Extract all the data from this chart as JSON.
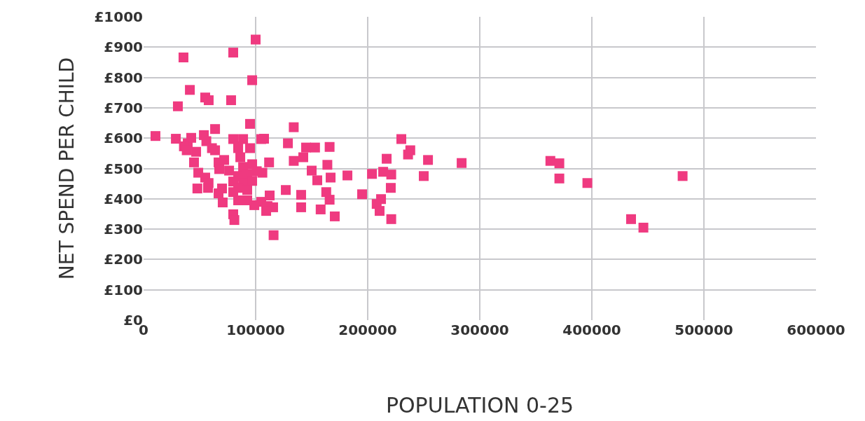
{
  "chart_data": {
    "type": "scatter",
    "xlabel": "POPULATION 0-25",
    "ylabel": "NET SPEND PER CHILD",
    "marker": "square",
    "grid": true,
    "xlim": [
      0,
      600000
    ],
    "xticks": [
      0,
      100000,
      200000,
      300000,
      400000,
      500000,
      600000
    ],
    "ylim": [
      0,
      1000
    ],
    "yticks": [
      {
        "value": 0,
        "label": "£0"
      },
      {
        "value": 100,
        "label": "£100"
      },
      {
        "value": 200,
        "label": "£200"
      },
      {
        "value": 300,
        "label": "£300"
      },
      {
        "value": 400,
        "label": "£400"
      },
      {
        "value": 500,
        "label": "£500"
      },
      {
        "value": 600,
        "label": "£600"
      },
      {
        "value": 700,
        "label": "£700"
      },
      {
        "value": 800,
        "label": "£800"
      },
      {
        "value": 900,
        "label": "£900"
      },
      {
        "value": 1000,
        "label": "£1000"
      }
    ],
    "series": [
      {
        "color": "#ef3a80",
        "x": [
          10600,
          28800,
          39400,
          42500,
          53800,
          63800,
          95000,
          107500,
          128800,
          36000,
          38500,
          46900,
          56000,
          61000,
          63800,
          45000,
          48800,
          55000,
          58000,
          48000,
          57500,
          66900,
          71900,
          67500,
          76300,
          84400,
          88800,
          86300,
          95000,
          88800,
          96900,
          84400,
          92500,
          101000,
          106000,
          80000,
          88800,
          96900,
          84400,
          92500,
          70000,
          66900,
          70600,
          80000,
          84400,
          92500,
          98800,
          105000,
          110600,
          115600,
          112500,
          109400,
          126900,
          80000,
          81000,
          116000,
          112000,
          105000,
          80000,
          84400,
          100000,
          80000,
          35600,
          41300,
          55000,
          58100,
          78100,
          30600,
          96900,
          134000,
          145000,
          153000,
          166000,
          134000,
          142500,
          150000,
          164000,
          166900,
          155000,
          181900,
          140600,
          163000,
          166000,
          140600,
          158000,
          170600,
          195000,
          203800,
          213800,
          221000,
          216900,
          230000,
          238000,
          236000,
          253800,
          283800,
          250000,
          220600,
          211900,
          208000,
          210600,
          221000,
          363000,
          371000,
          371000,
          396000,
          435000,
          446000,
          481000
        ],
        "values": [
          607,
          598,
          583,
          601,
          610,
          630,
          647,
          598,
          583,
          573,
          560,
          555,
          590,
          567,
          560,
          520,
          486,
          470,
          452,
          434,
          436,
          520,
          528,
          498,
          493,
          567,
          597,
          537,
          567,
          505,
          514,
          475,
          482,
          491,
          486,
          457,
          452,
          459,
          436,
          429,
          434,
          418,
          388,
          422,
          395,
          395,
          379,
          390,
          376,
          372,
          411,
          360,
          429,
          349,
          330,
          280,
          520,
          597,
          597,
          573,
          925,
          882,
          866,
          759,
          734,
          725,
          725,
          705,
          791,
          636,
          569,
          569,
          571,
          525,
          537,
          493,
          512,
          470,
          461,
          477,
          413,
          422,
          397,
          372,
          365,
          342,
          415,
          482,
          489,
          480,
          532,
          597,
          560,
          546,
          528,
          518,
          475,
          436,
          399,
          383,
          360,
          333,
          525,
          517,
          467,
          452,
          333,
          305,
          475
        ]
      }
    ]
  }
}
